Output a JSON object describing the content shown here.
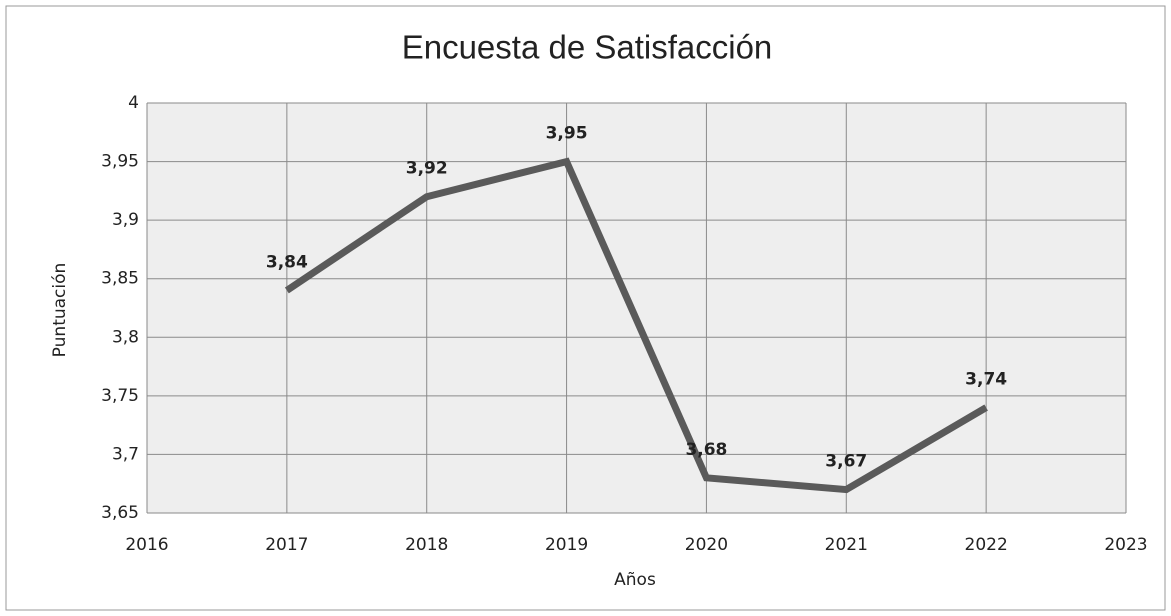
{
  "chart_data": {
    "type": "line",
    "title": "Encuesta de Satisfacción",
    "x_label": "Años",
    "y_label": "Puntuación",
    "x": [
      2017,
      2018,
      2019,
      2020,
      2021,
      2022
    ],
    "values": [
      3.84,
      3.92,
      3.95,
      3.68,
      3.67,
      3.74
    ],
    "value_labels": [
      "3,84",
      "3,92",
      "3,95",
      "3,68",
      "3,67",
      "3,74"
    ],
    "color": "#5a5a5a",
    "xlim": [
      2016,
      2023
    ],
    "xticks": [
      2016,
      2017,
      2018,
      2019,
      2020,
      2021,
      2022,
      2023
    ],
    "ylim": [
      3.65,
      4
    ],
    "yticks": [
      {
        "value": 3.65,
        "label": "3,65"
      },
      {
        "value": 3.7,
        "label": "3,7"
      },
      {
        "value": 3.75,
        "label": "3,75"
      },
      {
        "value": 3.8,
        "label": "3,8"
      },
      {
        "value": 3.85,
        "label": "3,85"
      },
      {
        "value": 3.9,
        "label": "3,9"
      },
      {
        "value": 3.95,
        "label": "3,95"
      },
      4
    ],
    "grid": true
  }
}
